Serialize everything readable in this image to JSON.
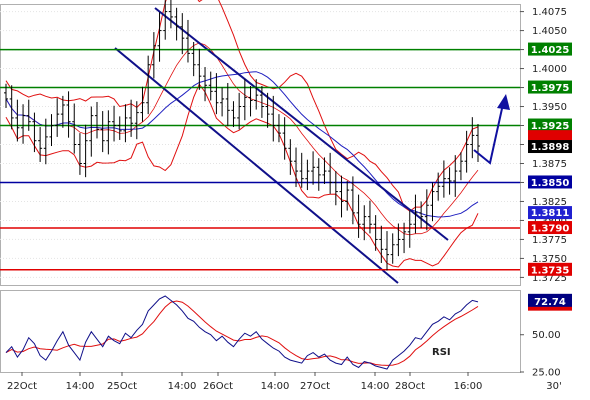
{
  "chart_data": {
    "type": "candlestick",
    "instrument_timeframe": "30'",
    "price_axis": {
      "range": [
        1.3715,
        1.4085
      ],
      "ticks": [
        "1.4075",
        "1.4050",
        "1.4025",
        "1.4000",
        "1.3975",
        "1.3950",
        "1.3925",
        "1.3900",
        "1.3875",
        "1.3850",
        "1.3825",
        "1.3800",
        "1.3775",
        "1.3750",
        "1.3725"
      ]
    },
    "levels": [
      {
        "name": "resistance-1",
        "value": 1.4025,
        "label": "1.4025",
        "color": "#008000"
      },
      {
        "name": "resistance-2",
        "value": 1.3975,
        "label": "1.3975",
        "color": "#008000"
      },
      {
        "name": "resistance-3",
        "value": 1.3925,
        "label": "1.3925",
        "color": "#008000"
      },
      {
        "name": "pivot",
        "value": 1.385,
        "label": "1.3850",
        "color": "#0000a0"
      },
      {
        "name": "support-1",
        "value": 1.379,
        "label": "1.3790",
        "color": "#e00000"
      },
      {
        "name": "support-2",
        "value": 1.3735,
        "label": "1.3735",
        "color": "#e00000"
      }
    ],
    "current_price": {
      "value": 1.3898,
      "label": "1.3898",
      "color": "#000000"
    },
    "red_band_tag": {
      "value": 1.3911,
      "color": "#e00000"
    },
    "ma_tag": {
      "value": 1.3811,
      "label": "1.3811",
      "color": "#2020d0"
    },
    "x_labels": [
      "22Oct",
      "14:00",
      "25Oct",
      "14:00",
      "26Oct",
      "14:00",
      "27Oct",
      "14:00",
      "28Oct",
      "16:00"
    ],
    "close": [
      1.396,
      1.3935,
      1.3922,
      1.3938,
      1.393,
      1.3905,
      1.3895,
      1.391,
      1.3925,
      1.394,
      1.3952,
      1.393,
      1.39,
      1.3875,
      1.3905,
      1.3938,
      1.392,
      1.3905,
      1.393,
      1.3925,
      1.3918,
      1.3935,
      1.3928,
      1.3942,
      1.3955,
      1.4005,
      1.403,
      1.405,
      1.4075,
      1.4068,
      1.4055,
      1.404,
      1.402,
      1.4005,
      1.399,
      1.3978,
      1.397,
      1.3955,
      1.396,
      1.3945,
      1.3935,
      1.395,
      1.3962,
      1.3958,
      1.3965,
      1.395,
      1.394,
      1.3925,
      1.3915,
      1.3895,
      1.3878,
      1.3865,
      1.3855,
      1.3865,
      1.387,
      1.386,
      1.3865,
      1.385,
      1.3838,
      1.3825,
      1.384,
      1.381,
      1.3795,
      1.3805,
      1.3795,
      1.3775,
      1.3762,
      1.3755,
      1.3768,
      1.3775,
      1.3785,
      1.3795,
      1.381,
      1.3805,
      1.382,
      1.3838,
      1.3845,
      1.3855,
      1.3852,
      1.3865,
      1.3878,
      1.39,
      1.3912,
      1.3898
    ],
    "rsi": {
      "label": "RSI",
      "range": [
        25,
        80
      ],
      "ticks": [
        "50.00",
        "25.00"
      ],
      "current": {
        "value": 72.74,
        "label": "72.74",
        "color": "#000080"
      },
      "signal_tag": {
        "value": 69.5,
        "color": "#e00000"
      },
      "rsi_values": [
        38,
        42,
        35,
        40,
        48,
        44,
        36,
        33,
        39,
        46,
        52,
        43,
        38,
        33,
        45,
        52,
        47,
        42,
        49,
        46,
        44,
        51,
        48,
        53,
        57,
        66,
        70,
        74,
        76,
        73,
        70,
        66,
        61,
        59,
        55,
        52,
        50,
        46,
        49,
        45,
        42,
        47,
        51,
        49,
        52,
        47,
        44,
        41,
        39,
        35,
        33,
        32,
        31,
        36,
        38,
        35,
        37,
        33,
        31,
        30,
        35,
        30,
        28,
        32,
        31,
        29,
        28,
        27,
        33,
        36,
        39,
        43,
        48,
        47,
        52,
        57,
        59,
        62,
        60,
        64,
        66,
        70,
        73,
        72
      ]
    }
  }
}
